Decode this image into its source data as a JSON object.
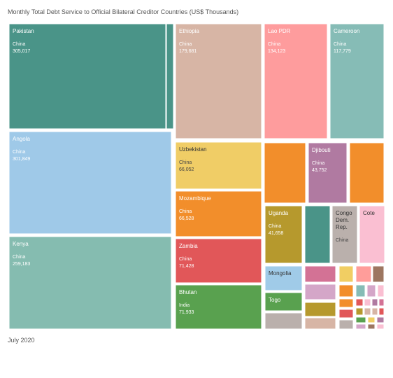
{
  "title": "Monthly Total Debt Service to Official Bilateral Creditor Countries (US$ Thousands)",
  "footer": "July 2020",
  "chart_data": {
    "type": "treemap",
    "title": "Monthly Total Debt Service to Official Bilateral Creditor Countries (US$ Thousands)",
    "period": "July 2020",
    "items": [
      {
        "country": "Pakistan",
        "creditor": "China",
        "value": "305,017",
        "color": "#4a9488"
      },
      {
        "country": "Angola",
        "creditor": "China",
        "value": "301,849",
        "color": "#9fc9e8"
      },
      {
        "country": "Kenya",
        "creditor": "China",
        "value": "259,183",
        "color": "#85bcb0"
      },
      {
        "country": "Ethiopia",
        "creditor": "China",
        "value": "179,681",
        "color": "#d7b5a5"
      },
      {
        "country": "Lao PDR",
        "creditor": "China",
        "value": "134,123",
        "color": "#fe9c9d"
      },
      {
        "country": "Cameroon",
        "creditor": "China",
        "value": "117,779",
        "color": "#86bcb6"
      },
      {
        "country": "Uzbekistan",
        "creditor": "China",
        "value": "66,052",
        "color": "#f0cd66"
      },
      {
        "country": "Mozambique",
        "creditor": "China",
        "value": "66,528",
        "color": "#f28e2b"
      },
      {
        "country": "Zambia",
        "creditor": "China",
        "value": "71,428",
        "color": "#e15759"
      },
      {
        "country": "Bhutan",
        "creditor": "India",
        "value": "71,933",
        "color": "#59a14f"
      },
      {
        "country": "Djibouti",
        "creditor": "China",
        "value": "43,752",
        "color": "#b07aa1"
      },
      {
        "country": "Uganda",
        "creditor": "China",
        "value": "41,658",
        "color": "#b6992d"
      },
      {
        "country": "Congo, Dem. Rep.",
        "creditor": "China",
        "value": "",
        "color": "#bab0ac"
      },
      {
        "country": "Cote",
        "creditor": "",
        "value": "",
        "color": "#fabfd2"
      },
      {
        "country": "Mongolia",
        "creditor": "",
        "value": "",
        "color": "#a0cbe8"
      },
      {
        "country": "Togo",
        "creditor": "",
        "value": "",
        "color": "#59a14f"
      }
    ]
  }
}
